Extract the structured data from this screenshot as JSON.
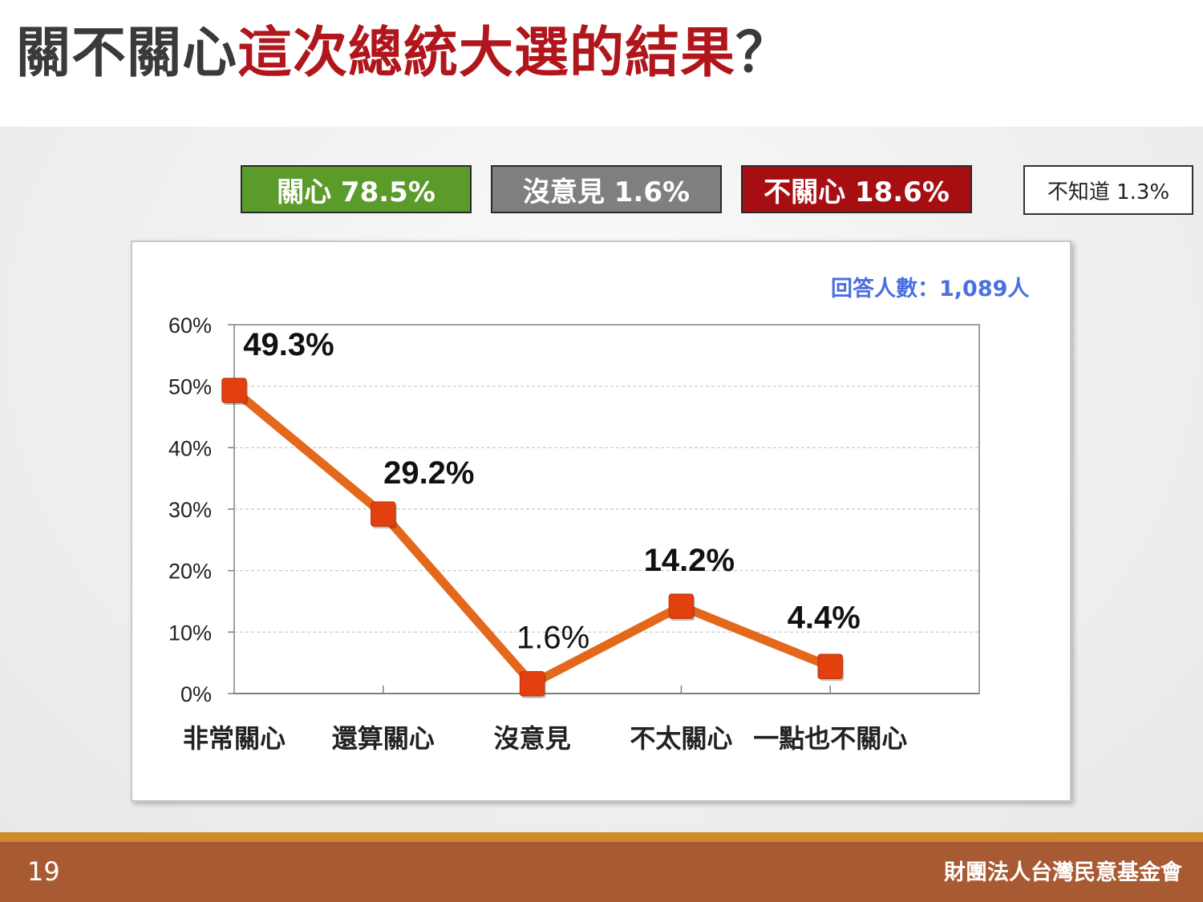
{
  "slide": {
    "title_part1": "關不關心",
    "title_part2": "這次總統大選的結果",
    "title_part3": "？",
    "page_number": "19",
    "organization": "財團法人台灣民意基金會"
  },
  "legend": {
    "care": "關心 78.5%",
    "no_opinion": "沒意見 1.6%",
    "not_care": "不關心 18.6%",
    "dont_know": "不知道 1.3%"
  },
  "respondents": "回答人數：1,089人",
  "colors": {
    "care": "#5a9b2a",
    "no_opinion": "#7f7f7f",
    "not_care": "#a60e12",
    "line": "#e4681c",
    "marker": "#e2410f",
    "title_red": "#b0161b",
    "footer": "#a85a32"
  },
  "chart_data": {
    "type": "line",
    "categories": [
      "非常關心",
      "還算關心",
      "沒意見",
      "不太關心",
      "一點也不關心"
    ],
    "values": [
      49.3,
      29.2,
      1.6,
      14.2,
      4.4
    ],
    "data_labels": [
      "49.3%",
      "29.2%",
      "1.6%",
      "14.2%",
      "4.4%"
    ],
    "data_label_bold": [
      true,
      true,
      false,
      true,
      true
    ],
    "y_ticks": [
      "0%",
      "10%",
      "20%",
      "30%",
      "40%",
      "50%",
      "60%"
    ],
    "ylim": [
      0,
      60
    ],
    "grid": true
  }
}
